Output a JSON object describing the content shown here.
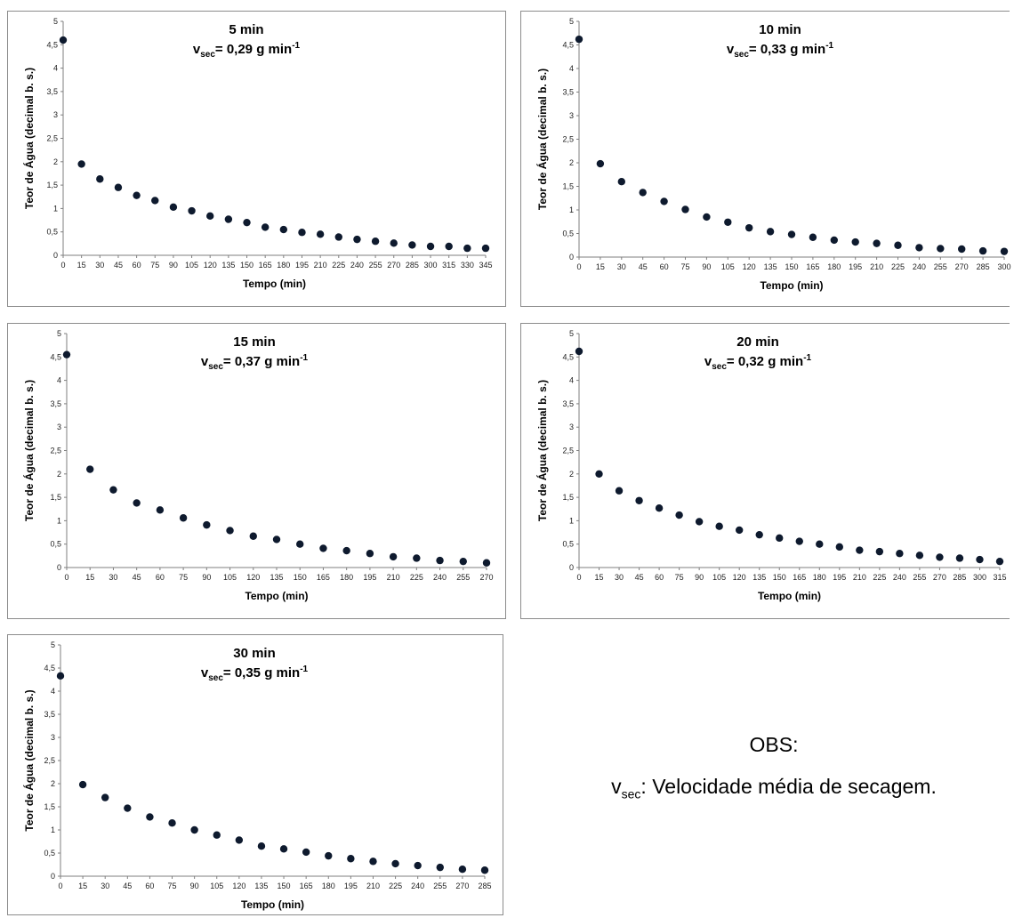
{
  "chart_data": [
    {
      "type": "scatter",
      "title": "5 min",
      "subtitle": "v",
      "subtitle_sub": "sec",
      "subtitle_value": "= 0,29 g min",
      "subtitle_sup": "-1",
      "xlabel": "Tempo (min)",
      "ylabel": "Teor de Água (decimal b. s.)",
      "ylim": [
        0,
        5
      ],
      "yticks": [
        "0",
        "0,5",
        "1",
        "1,5",
        "2",
        "2,5",
        "3",
        "3,5",
        "4",
        "4,5",
        "5"
      ],
      "x": [
        0,
        15,
        30,
        45,
        60,
        75,
        90,
        105,
        120,
        135,
        150,
        165,
        180,
        195,
        210,
        225,
        240,
        255,
        270,
        285,
        300,
        315,
        330,
        345
      ],
      "y": [
        4.6,
        1.95,
        1.63,
        1.45,
        1.28,
        1.17,
        1.03,
        0.95,
        0.84,
        0.77,
        0.7,
        0.6,
        0.55,
        0.49,
        0.45,
        0.39,
        0.34,
        0.3,
        0.26,
        0.22,
        0.19,
        0.19,
        0.15,
        0.15
      ],
      "marker_color": "#0e1a2e"
    },
    {
      "type": "scatter",
      "title": "10 min",
      "subtitle": "v",
      "subtitle_sub": "sec",
      "subtitle_value": "= 0,33 g min",
      "subtitle_sup": "-1",
      "xlabel": "Tempo (min)",
      "ylabel": "Teor de Água (decimal b. s.)",
      "ylim": [
        0,
        5
      ],
      "yticks": [
        "0",
        "0,5",
        "1",
        "1,5",
        "2",
        "2,5",
        "3",
        "3,5",
        "4",
        "4,5",
        "5"
      ],
      "x": [
        0,
        15,
        30,
        45,
        60,
        75,
        90,
        105,
        120,
        135,
        150,
        165,
        180,
        195,
        210,
        225,
        240,
        255,
        270,
        285,
        300
      ],
      "y": [
        4.62,
        1.98,
        1.6,
        1.37,
        1.18,
        1.01,
        0.85,
        0.74,
        0.62,
        0.54,
        0.48,
        0.42,
        0.36,
        0.32,
        0.29,
        0.25,
        0.2,
        0.18,
        0.17,
        0.13,
        0.12
      ],
      "marker_color": "#0e1a2e"
    },
    {
      "type": "scatter",
      "title": "15 min",
      "subtitle": "v",
      "subtitle_sub": "sec",
      "subtitle_value": "= 0,37 g min",
      "subtitle_sup": "-1",
      "xlabel": "Tempo (min)",
      "ylabel": "Teor de Água (decimal b. s.)",
      "ylim": [
        0,
        5
      ],
      "yticks": [
        "0",
        "0,5",
        "1",
        "1,5",
        "2",
        "2,5",
        "3",
        "3,5",
        "4",
        "4,5",
        "5"
      ],
      "x": [
        0,
        15,
        30,
        45,
        60,
        75,
        90,
        105,
        120,
        135,
        150,
        165,
        180,
        195,
        210,
        225,
        240,
        255,
        270
      ],
      "y": [
        4.55,
        2.1,
        1.66,
        1.38,
        1.23,
        1.06,
        0.91,
        0.79,
        0.67,
        0.6,
        0.5,
        0.41,
        0.36,
        0.3,
        0.23,
        0.2,
        0.15,
        0.13,
        0.1
      ],
      "marker_color": "#0e1a2e"
    },
    {
      "type": "scatter",
      "title": "20 min",
      "subtitle": "v",
      "subtitle_sub": "sec",
      "subtitle_value": "= 0,32 g min",
      "subtitle_sup": "-1",
      "xlabel": "Tempo (min)",
      "ylabel": "Teor de Água (decimal b. s.)",
      "ylim": [
        0,
        5
      ],
      "yticks": [
        "0",
        "0,5",
        "1",
        "1,5",
        "2",
        "2,5",
        "3",
        "3,5",
        "4",
        "4,5",
        "5"
      ],
      "x": [
        0,
        15,
        30,
        45,
        60,
        75,
        90,
        105,
        120,
        135,
        150,
        165,
        180,
        195,
        210,
        225,
        240,
        255,
        270,
        285,
        300,
        315
      ],
      "y": [
        4.62,
        2.0,
        1.64,
        1.43,
        1.27,
        1.12,
        0.98,
        0.88,
        0.8,
        0.7,
        0.63,
        0.56,
        0.5,
        0.44,
        0.37,
        0.34,
        0.3,
        0.26,
        0.22,
        0.2,
        0.17,
        0.13
      ],
      "marker_color": "#0e1a2e"
    },
    {
      "type": "scatter",
      "title": "30 min",
      "subtitle": "v",
      "subtitle_sub": "sec",
      "subtitle_value": "= 0,35 g min",
      "subtitle_sup": "-1",
      "xlabel": "Tempo (min)",
      "ylabel": "Teor de Água (decimal b. s.)",
      "ylim": [
        0,
        5
      ],
      "yticks": [
        "0",
        "0,5",
        "1",
        "1,5",
        "2",
        "2,5",
        "3",
        "3,5",
        "4",
        "4,5",
        "5"
      ],
      "x": [
        0,
        15,
        30,
        45,
        60,
        75,
        90,
        105,
        120,
        135,
        150,
        165,
        180,
        195,
        210,
        225,
        240,
        255,
        270,
        285
      ],
      "y": [
        4.33,
        1.98,
        1.7,
        1.47,
        1.28,
        1.15,
        1.0,
        0.89,
        0.78,
        0.65,
        0.59,
        0.52,
        0.44,
        0.38,
        0.32,
        0.27,
        0.23,
        0.19,
        0.15,
        0.13
      ],
      "marker_color": "#0e1a2e"
    }
  ],
  "note": {
    "line1": "OBS:",
    "symbol": "v",
    "symbol_sub": "sec",
    "text": ": Velocidade média de secagem."
  }
}
